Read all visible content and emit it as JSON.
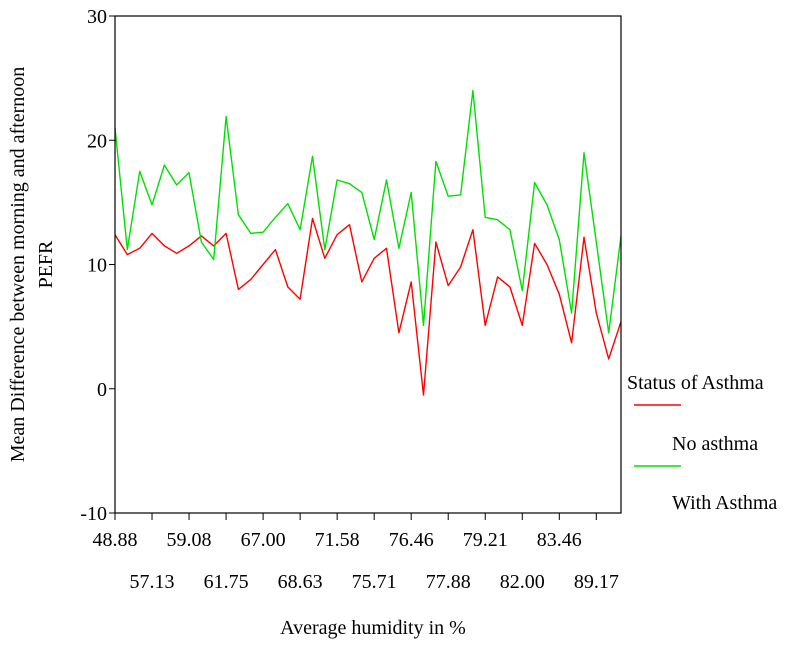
{
  "chart_data": {
    "type": "line",
    "title": "",
    "xlabel": "Average humidity in %",
    "ylabel_line1": "Mean Difference between morning and afternoon",
    "ylabel_line2": "PEFR",
    "ylim": [
      -10,
      30
    ],
    "yticks": [
      -10,
      0,
      10,
      20,
      30
    ],
    "xtick_labels_row1": [
      "48.88",
      "59.08",
      "67.00",
      "71.58",
      "76.46",
      "79.21",
      "83.46"
    ],
    "xtick_labels_row2": [
      "57.13",
      "61.75",
      "68.63",
      "75.71",
      "77.88",
      "82.00",
      "89.17"
    ],
    "grid": false,
    "legend": {
      "title": "Status of Asthma",
      "placement": "right",
      "entries": [
        "No asthma",
        "With Asthma"
      ]
    },
    "series": [
      {
        "name": "No asthma",
        "color": "#ff0000",
        "values": [
          12.4,
          10.8,
          11.3,
          12.5,
          11.5,
          10.9,
          11.5,
          12.3,
          11.5,
          12.5,
          8.0,
          8.8,
          10.0,
          11.2,
          8.2,
          7.2,
          13.7,
          10.5,
          12.4,
          13.2,
          8.6,
          10.5,
          11.3,
          4.5,
          8.6,
          -0.5,
          11.8,
          8.3,
          9.8,
          12.8,
          5.1,
          9.0,
          8.2,
          5.1,
          11.7,
          10.0,
          7.6,
          3.7,
          12.2,
          6.1,
          2.4,
          5.4
        ]
      },
      {
        "name": "With Asthma",
        "color": "#00e000",
        "values": [
          21.0,
          11.2,
          17.5,
          14.8,
          18.0,
          16.4,
          17.4,
          11.8,
          10.4,
          21.9,
          14.0,
          12.5,
          12.6,
          13.8,
          14.9,
          12.8,
          18.7,
          11.2,
          16.8,
          16.5,
          15.8,
          12.0,
          16.8,
          11.3,
          15.8,
          5.1,
          18.3,
          15.5,
          15.6,
          24.0,
          13.8,
          13.6,
          12.8,
          7.9,
          16.6,
          14.8,
          12.0,
          6.1,
          19.0,
          11.8,
          4.5,
          12.3
        ]
      }
    ]
  }
}
